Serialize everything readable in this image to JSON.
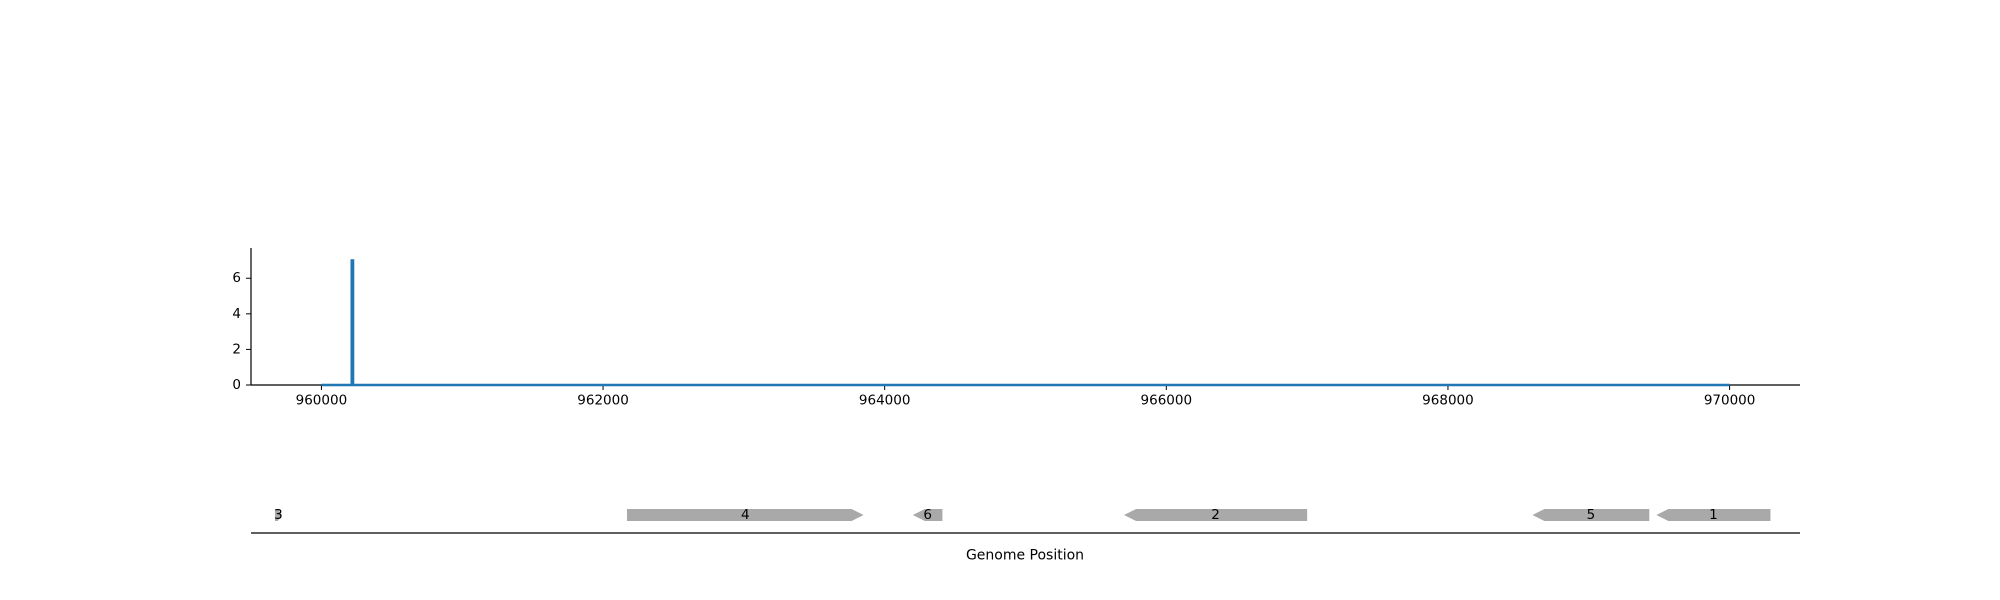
{
  "chart_data": [
    {
      "type": "line",
      "title": "",
      "xlabel": "",
      "ylabel": "",
      "xlim": [
        959500,
        970500
      ],
      "ylim": [
        0,
        7.7
      ],
      "x_ticks": [
        960000,
        962000,
        964000,
        966000,
        968000,
        970000
      ],
      "y_ticks": [
        0,
        2,
        4,
        6
      ],
      "grid": false,
      "legend": "none",
      "series": [
        {
          "color": "#1f77b4",
          "x": [
            960000,
            960215,
            960215,
            960225,
            960225,
            970000
          ],
          "y": [
            0,
            0,
            7,
            7,
            0,
            0
          ]
        }
      ]
    },
    {
      "type": "gene_track",
      "xlabel": "Genome Position",
      "xlim": [
        959500,
        970500
      ],
      "color": "#a9a9a9",
      "genes": [
        {
          "label": "3",
          "start": 959670,
          "end": 959720,
          "strand": "+"
        },
        {
          "label": "4",
          "start": 962170,
          "end": 963850,
          "strand": "+"
        },
        {
          "label": "6",
          "start": 964200,
          "end": 964410,
          "strand": "-"
        },
        {
          "label": "2",
          "start": 965700,
          "end": 967000,
          "strand": "-"
        },
        {
          "label": "5",
          "start": 968600,
          "end": 969430,
          "strand": "-"
        },
        {
          "label": "1",
          "start": 969480,
          "end": 970290,
          "strand": "-"
        }
      ]
    }
  ]
}
